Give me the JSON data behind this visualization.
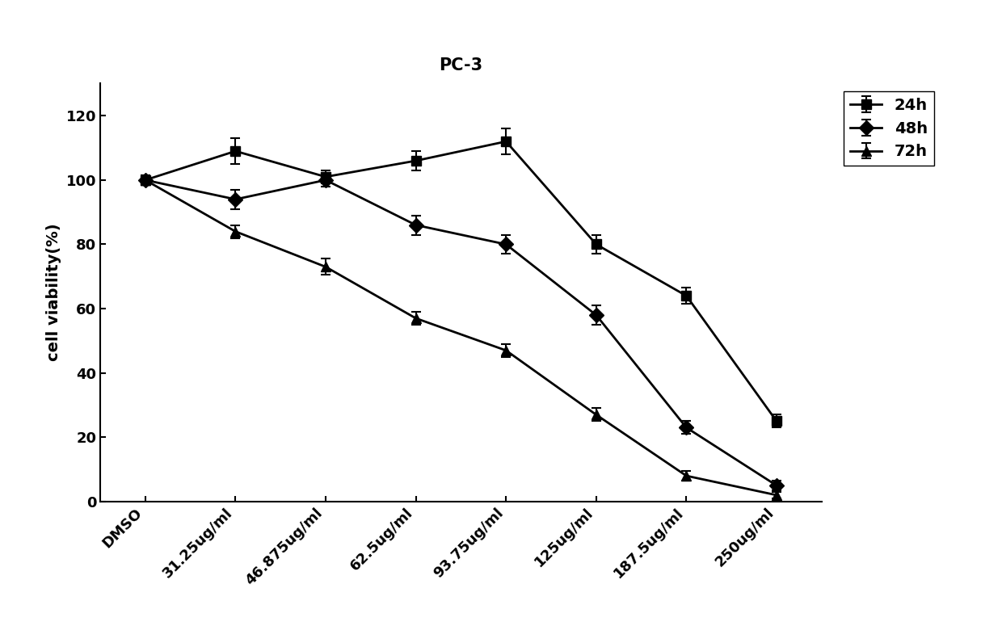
{
  "title": "PC-3",
  "xlabel": "",
  "ylabel": "cell viability(%)",
  "x_labels": [
    "DMSO",
    "31.25ug/ml",
    "46.875ug/ml",
    "62.5ug/ml",
    "93.75ug/ml",
    "125ug/ml",
    "187.5ug/ml",
    "250ug/ml"
  ],
  "series": [
    {
      "label": "24h",
      "values": [
        100,
        109,
        101,
        106,
        112,
        80,
        64,
        25
      ],
      "errors": [
        1.5,
        4,
        2,
        3,
        4,
        3,
        2.5,
        2
      ],
      "marker": "s",
      "color": "#000000"
    },
    {
      "label": "48h",
      "values": [
        100,
        94,
        100,
        86,
        80,
        58,
        23,
        5
      ],
      "errors": [
        1.5,
        3,
        2,
        3,
        3,
        3,
        2,
        1.5
      ],
      "marker": "D",
      "color": "#000000"
    },
    {
      "label": "72h",
      "values": [
        100,
        84,
        73,
        57,
        47,
        27,
        8,
        2
      ],
      "errors": [
        1.5,
        2,
        2.5,
        2,
        2,
        2,
        1.5,
        1
      ],
      "marker": "^",
      "color": "#000000"
    }
  ],
  "ylim": [
    0,
    130
  ],
  "yticks": [
    0,
    20,
    40,
    60,
    80,
    100,
    120
  ],
  "title_fontsize": 15,
  "axis_fontsize": 14,
  "tick_fontsize": 13,
  "legend_fontsize": 14,
  "background_color": "#ffffff",
  "linewidth": 2.0,
  "markersize": 9
}
